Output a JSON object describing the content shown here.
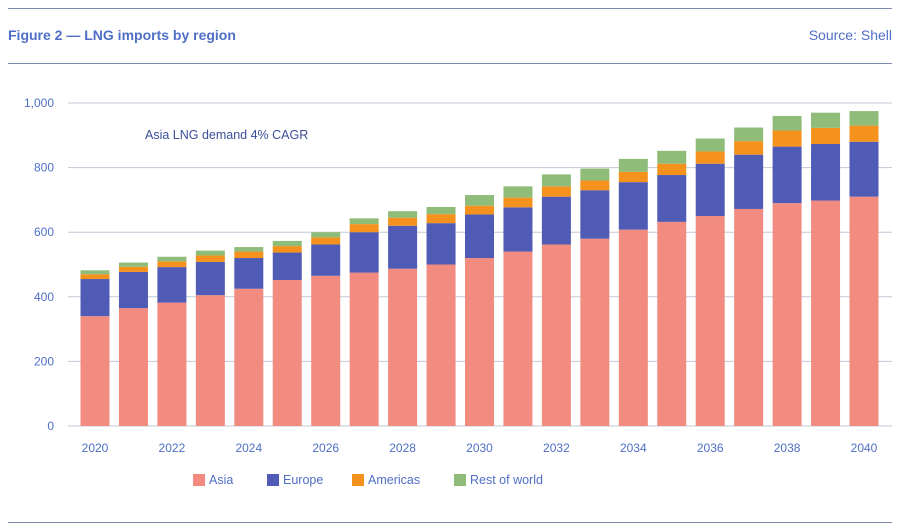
{
  "header": {
    "title": "Figure 2 — LNG imports by region",
    "source": "Source: Shell"
  },
  "colors": {
    "Asia": "#f28b80",
    "Europe": "#4f5bb5",
    "Americas": "#f5921e",
    "Rest of world": "#8fbc79"
  },
  "chart_data": {
    "type": "bar",
    "stacked": true,
    "title": "",
    "xlabel": "",
    "ylabel": "",
    "ylim": [
      0,
      1000
    ],
    "yticks": [
      0,
      200,
      400,
      600,
      800,
      1000
    ],
    "ytick_labels": [
      "0",
      "200",
      "400",
      "600",
      "800",
      "1,000"
    ],
    "categories": [
      2020,
      2021,
      2022,
      2023,
      2024,
      2025,
      2026,
      2027,
      2028,
      2029,
      2030,
      2031,
      2032,
      2033,
      2034,
      2035,
      2036,
      2037,
      2038,
      2039,
      2040
    ],
    "xtick_labels": [
      "2020",
      "2022",
      "2024",
      "2026",
      "2028",
      "2030",
      "2032",
      "2034",
      "2036",
      "2038",
      "2040"
    ],
    "annotation": "Asia LNG demand 4% CAGR",
    "legend_position": "bottom",
    "grid": true,
    "series": [
      {
        "name": "Asia",
        "values": [
          340,
          365,
          382,
          405,
          425,
          452,
          465,
          475,
          487,
          500,
          520,
          540,
          562,
          580,
          608,
          632,
          650,
          672,
          690,
          698,
          710
        ]
      },
      {
        "name": "Europe",
        "values": [
          115,
          112,
          110,
          103,
          95,
          85,
          97,
          125,
          133,
          128,
          135,
          137,
          148,
          150,
          147,
          145,
          162,
          168,
          175,
          175,
          170
        ]
      },
      {
        "name": "Americas",
        "values": [
          15,
          16,
          18,
          20,
          20,
          20,
          22,
          25,
          25,
          28,
          27,
          30,
          32,
          30,
          32,
          35,
          38,
          42,
          50,
          50,
          50
        ]
      },
      {
        "name": "Rest of world",
        "values": [
          12,
          13,
          14,
          15,
          14,
          16,
          16,
          18,
          20,
          22,
          33,
          35,
          37,
          37,
          40,
          40,
          40,
          42,
          45,
          47,
          45
        ]
      }
    ]
  }
}
